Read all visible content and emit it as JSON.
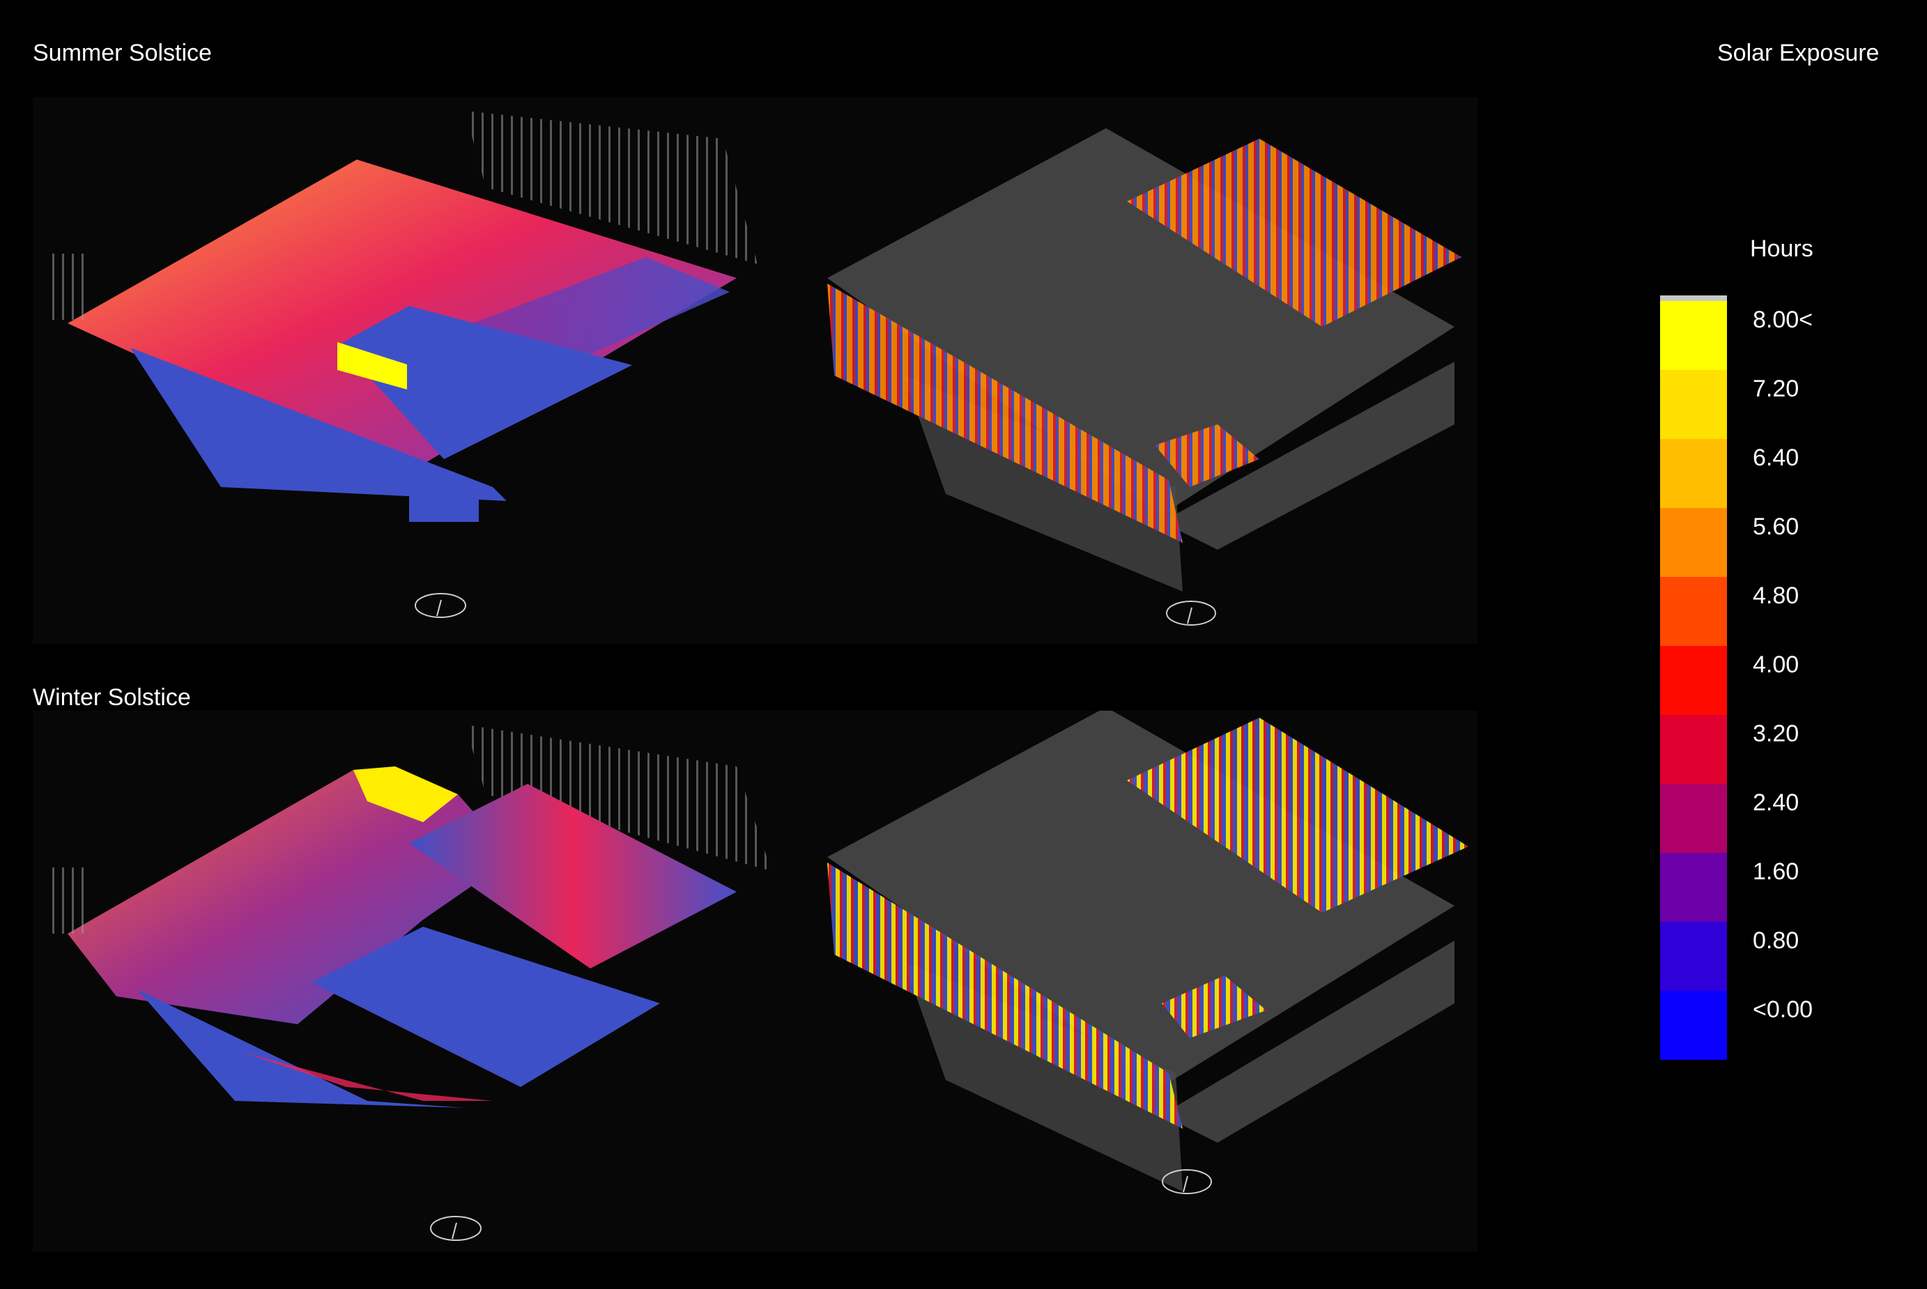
{
  "titles": {
    "summer": "Summer Solstice",
    "winter": "Winter Solstice",
    "right": "Solar Exposure"
  },
  "legend": {
    "title": "Hours",
    "steps": [
      {
        "label": "8.00<",
        "color": "#ffff00"
      },
      {
        "label": "7.20",
        "color": "#ffe000"
      },
      {
        "label": "6.40",
        "color": "#ffbe00"
      },
      {
        "label": "5.60",
        "color": "#ff8a00"
      },
      {
        "label": "4.80",
        "color": "#ff4800"
      },
      {
        "label": "4.00",
        "color": "#ff0a00"
      },
      {
        "label": "3.20",
        "color": "#e00030"
      },
      {
        "label": "2.40",
        "color": "#b0006a"
      },
      {
        "label": "1.60",
        "color": "#6c00a8"
      },
      {
        "label": "0.80",
        "color": "#3000d8"
      },
      {
        "label": "<0.00",
        "color": "#0a00ff"
      }
    ]
  },
  "colors": {
    "background": "#000000",
    "panel": "#070707",
    "low": "#3e50c8",
    "mid": "#e83a6a",
    "high": "#ffee00",
    "massing": "#8a8a8a"
  }
}
